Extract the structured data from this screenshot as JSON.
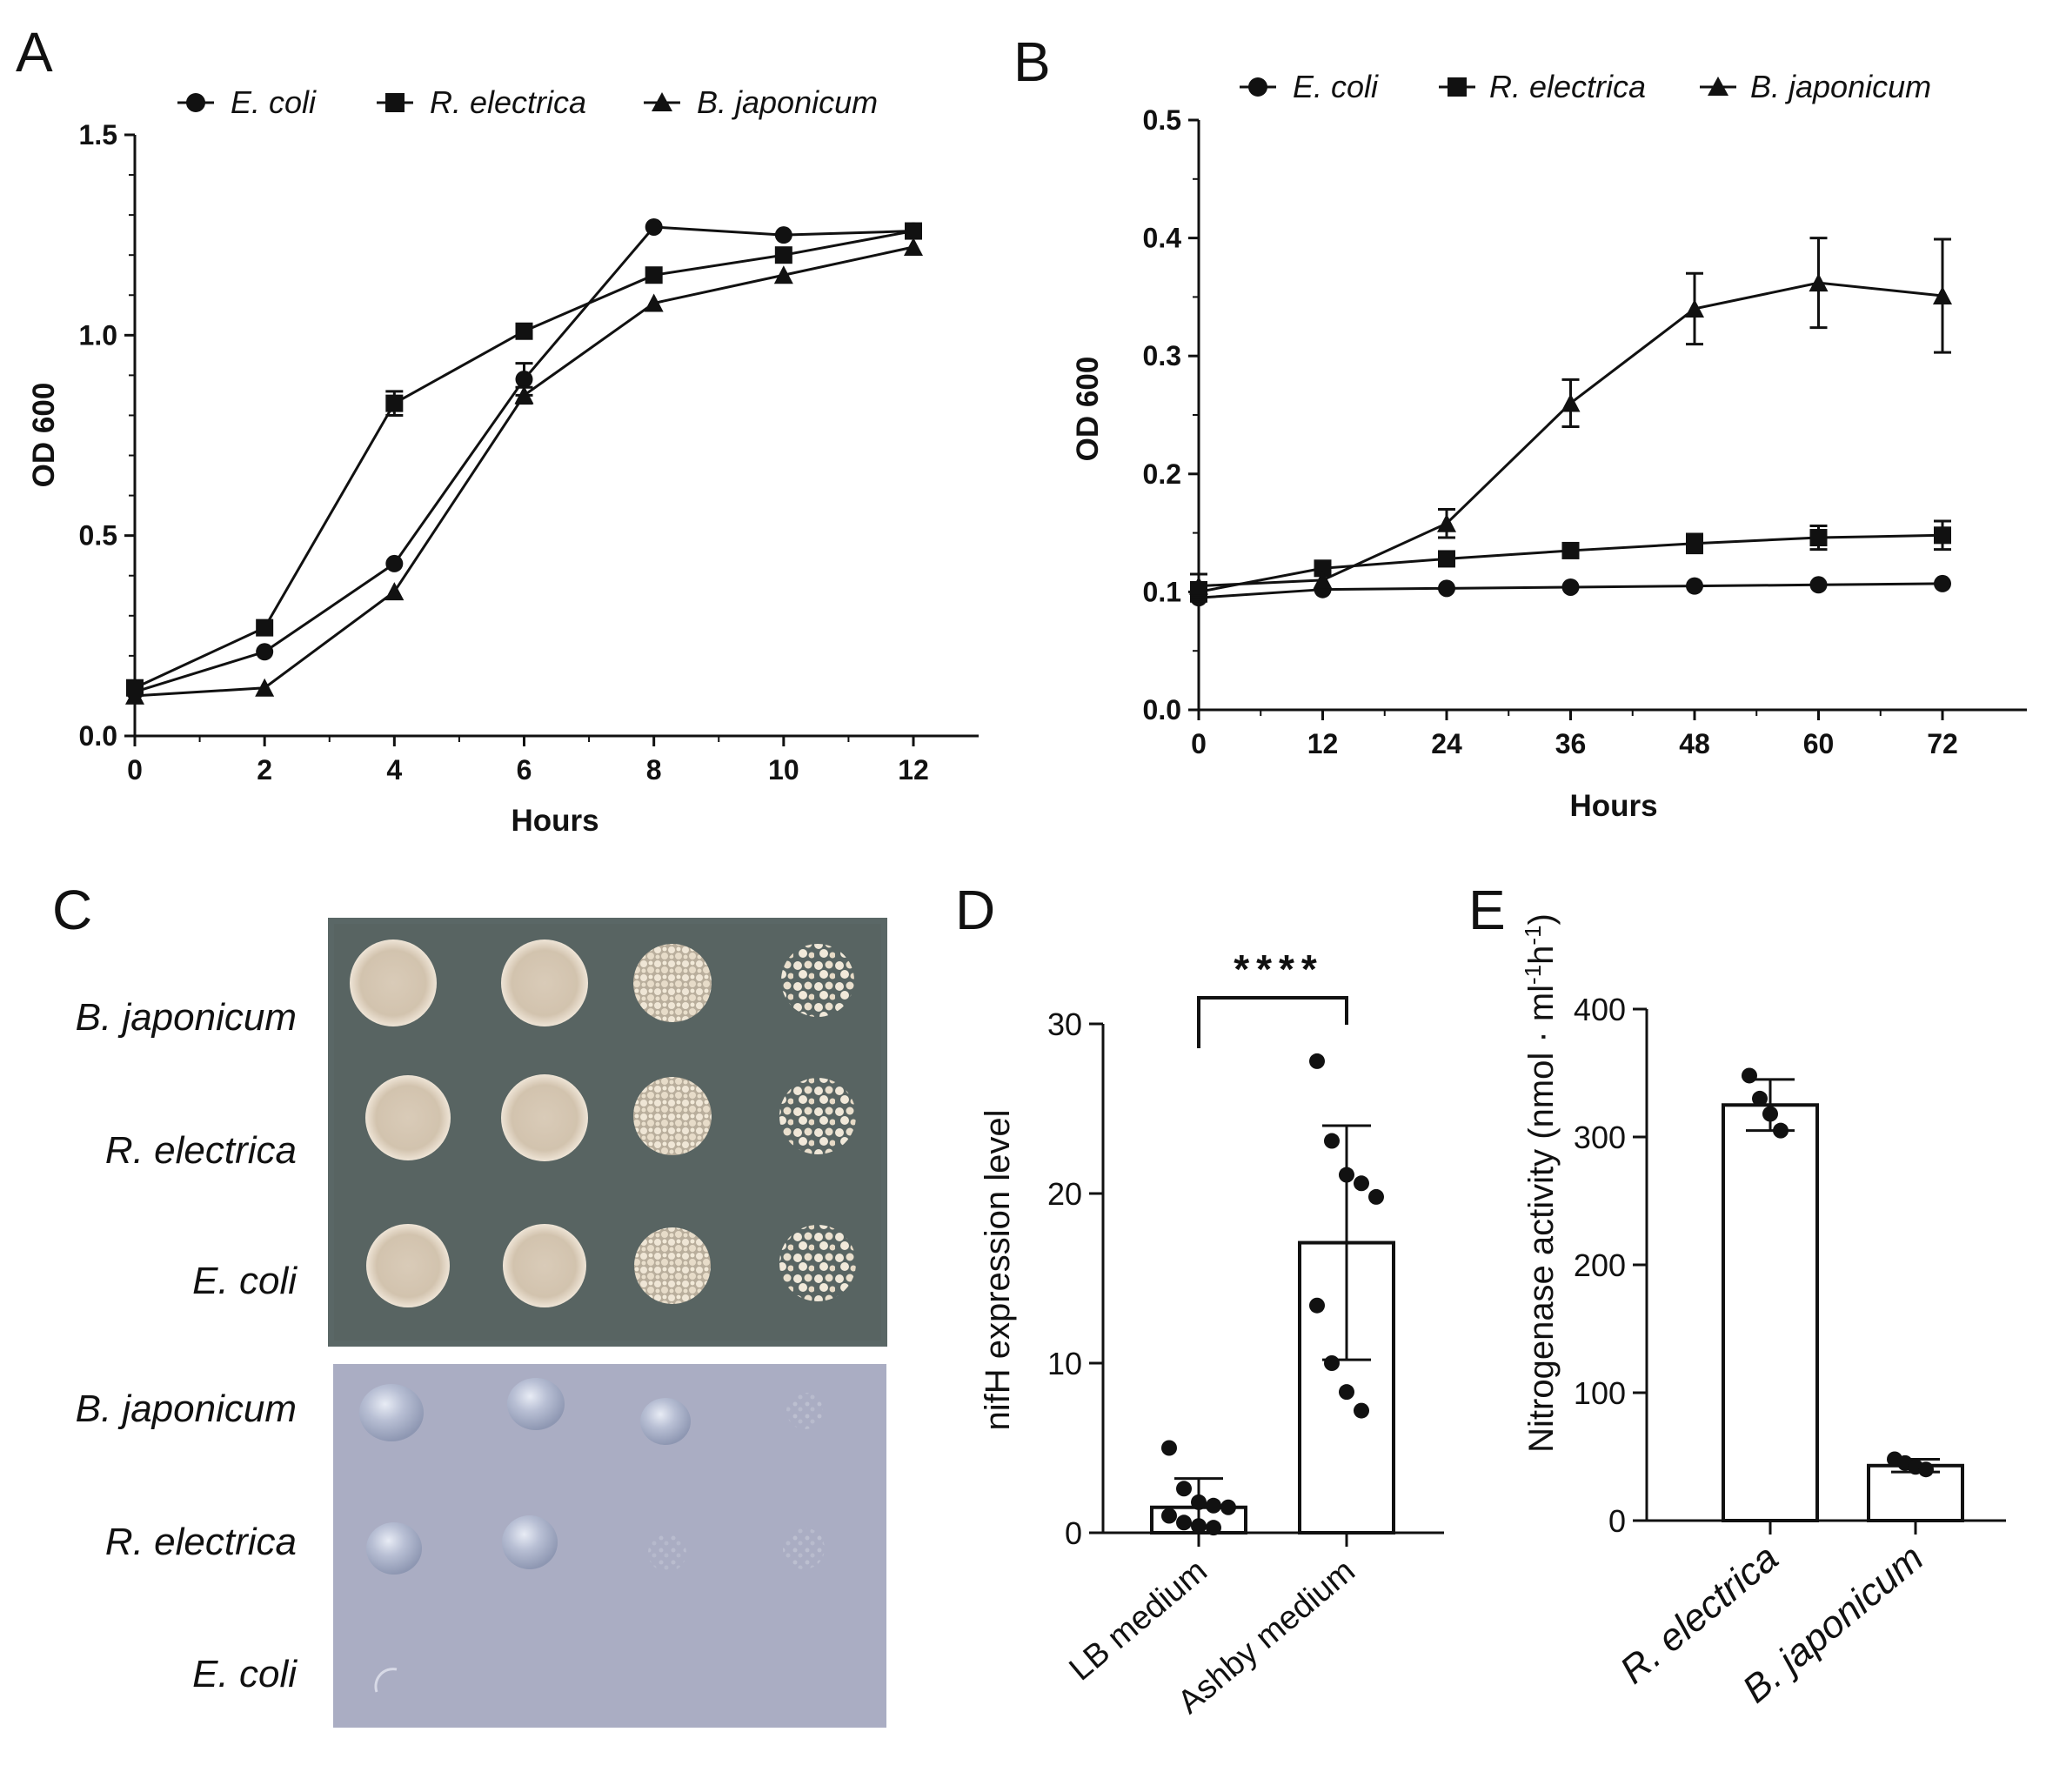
{
  "panels": {
    "a": "A",
    "b": "B",
    "c": "C",
    "d": "D",
    "e": "E"
  },
  "legend": [
    "E. coli",
    "R. electrica",
    "B. japonicum"
  ],
  "chart_data": [
    {
      "id": "A",
      "type": "line",
      "xlabel": "Hours",
      "ylabel": "OD 600",
      "xlim": [
        0,
        12
      ],
      "ylim": [
        0,
        1.5
      ],
      "xticks": [
        "0",
        "2",
        "4",
        "6",
        "8",
        "10",
        "12"
      ],
      "yticks": [
        "0.0",
        "0.5",
        "1.0",
        "1.5"
      ],
      "x": [
        0,
        2,
        4,
        6,
        8,
        10,
        12
      ],
      "series": [
        {
          "name": "E. coli",
          "marker": "circle",
          "values": [
            0.11,
            0.21,
            0.43,
            0.89,
            1.27,
            1.25,
            1.26
          ],
          "err": [
            0.01,
            0.01,
            0.01,
            0.04,
            0.01,
            0.01,
            0.01
          ]
        },
        {
          "name": "R. electrica",
          "marker": "square",
          "values": [
            0.12,
            0.27,
            0.83,
            1.01,
            1.15,
            1.2,
            1.26
          ],
          "err": [
            0.01,
            0.01,
            0.03,
            0.01,
            0.01,
            0.01,
            0.01
          ]
        },
        {
          "name": "B. japonicum",
          "marker": "triangle",
          "values": [
            0.1,
            0.12,
            0.36,
            0.85,
            1.08,
            1.15,
            1.22
          ],
          "err": [
            0.01,
            0.01,
            0.01,
            0.02,
            0.01,
            0.01,
            0.01
          ]
        }
      ],
      "legend_position": "top"
    },
    {
      "id": "B",
      "type": "line",
      "xlabel": "Hours",
      "ylabel": "OD 600",
      "xlim": [
        0,
        72
      ],
      "ylim": [
        0,
        0.5
      ],
      "xticks": [
        "0",
        "12",
        "24",
        "36",
        "48",
        "60",
        "72"
      ],
      "yticks": [
        "0.0",
        "0.1",
        "0.2",
        "0.3",
        "0.4",
        "0.5"
      ],
      "x": [
        0,
        12,
        24,
        36,
        48,
        60,
        72
      ],
      "series": [
        {
          "name": "E. coli",
          "marker": "circle",
          "values": [
            0.095,
            0.102,
            0.103,
            0.104,
            0.105,
            0.106,
            0.107
          ],
          "err": [
            0.005,
            0.003,
            0.002,
            0.002,
            0.002,
            0.002,
            0.003
          ]
        },
        {
          "name": "R. electrica",
          "marker": "square",
          "values": [
            0.1,
            0.12,
            0.128,
            0.135,
            0.141,
            0.146,
            0.148
          ],
          "err": [
            0.008,
            0.005,
            0.005,
            0.005,
            0.008,
            0.01,
            0.012
          ]
        },
        {
          "name": "B. japonicum",
          "marker": "triangle",
          "values": [
            0.105,
            0.11,
            0.158,
            0.26,
            0.34,
            0.362,
            0.351
          ],
          "err": [
            0.01,
            0.005,
            0.012,
            0.02,
            0.03,
            0.038,
            0.048
          ]
        }
      ],
      "legend_position": "top"
    },
    {
      "id": "D",
      "type": "bar",
      "ylabel": "nifH expression level",
      "ylim": [
        0,
        30
      ],
      "yticks": [
        "0",
        "10",
        "20",
        "30"
      ],
      "categories": [
        "LB medium",
        "Ashby medium"
      ],
      "values": [
        1.5,
        17.1
      ],
      "sd": [
        1.7,
        6.9
      ],
      "points": [
        [
          5.0,
          2.6,
          1.8,
          1.6,
          1.5,
          1.0,
          0.6,
          0.4,
          0.3
        ],
        [
          27.8,
          23.1,
          21.1,
          20.6,
          19.8,
          13.4,
          10.0,
          8.3,
          7.2
        ]
      ],
      "significance": "****"
    },
    {
      "id": "E",
      "type": "bar",
      "ylabel": "Nitrogenase activity (nmol · ml-1h-1)",
      "ylabel_parts": {
        "main": "Nitrogenase activity (nmol · ml",
        "sup1": "-1",
        "mid": "h",
        "sup2": "-1",
        "end": ")"
      },
      "ylim": [
        0,
        400
      ],
      "yticks": [
        "0",
        "100",
        "200",
        "300",
        "400"
      ],
      "categories": [
        "R. electrica",
        "B. japonicum"
      ],
      "values": [
        325,
        43
      ],
      "sd": [
        20,
        5
      ],
      "points": [
        [
          348,
          330,
          318,
          305
        ],
        [
          48,
          45,
          42,
          40
        ]
      ]
    }
  ],
  "plate_labels": {
    "top": [
      "B. japonicum",
      "R. electrica",
      "E. coli"
    ],
    "bottom": [
      "B. japonicum",
      "R. electrica",
      "E. coli"
    ]
  }
}
